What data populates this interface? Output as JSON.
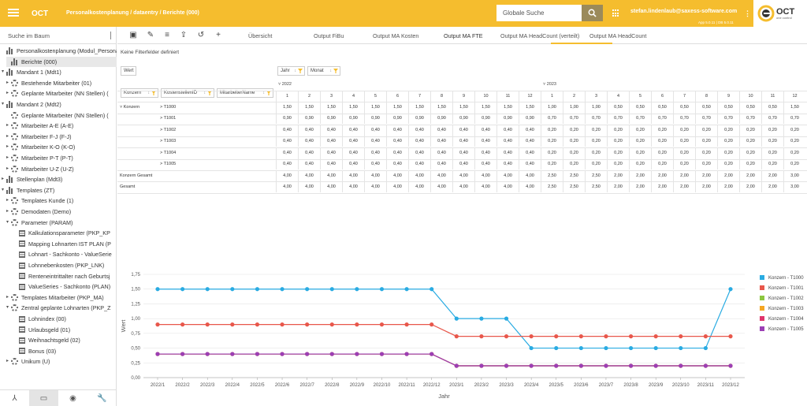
{
  "app": {
    "logo": "OCT",
    "breadcrumb": "Personalkostenplanung / dataentry / Berichte (000)",
    "search_placeholder": "Globale Suche",
    "user": "stefan.lindenlaub@saxess-software.com",
    "version": "App 5.0.11 | DB 5.0.11",
    "brand_text": "OCT",
    "brand_sub": "one control"
  },
  "sidebar": {
    "search_placeholder": "Suche im Baum",
    "items": [
      {
        "label": "Personalkostenplanung (Modul_Persona",
        "level": 0,
        "arrow": "",
        "icon": "tree",
        "selected": false
      },
      {
        "label": "Berichte (000)",
        "level": 1,
        "arrow": "",
        "icon": "bars",
        "selected": true
      },
      {
        "label": "Mandant 1 (Mdt1)",
        "level": 0,
        "arrow": "▾",
        "icon": "bars",
        "selected": false
      },
      {
        "label": "Bestehende Mitarbeiter (01)",
        "level": 1,
        "arrow": "▸",
        "icon": "gear",
        "selected": false
      },
      {
        "label": "Geplante Mitarbeiter (NN Stellen) (",
        "level": 1,
        "arrow": "▸",
        "icon": "gear",
        "selected": false
      },
      {
        "label": "Mandant 2 (Mdt2)",
        "level": 0,
        "arrow": "▾",
        "icon": "bars",
        "selected": false
      },
      {
        "label": "Geplante Mitarbeiter (NN Stellen) (",
        "level": 1,
        "arrow": "",
        "icon": "gear",
        "selected": false
      },
      {
        "label": "Mitarbeiter A-E (A-E)",
        "level": 1,
        "arrow": "▸",
        "icon": "gear",
        "selected": false
      },
      {
        "label": "Mitarbeiter F-J (F-J)",
        "level": 1,
        "arrow": "▸",
        "icon": "gear",
        "selected": false
      },
      {
        "label": "Mitarbeiter K-O (K-O)",
        "level": 1,
        "arrow": "▸",
        "icon": "gear",
        "selected": false
      },
      {
        "label": "Mitarbeiter P-T (P-T)",
        "level": 1,
        "arrow": "▸",
        "icon": "gear",
        "selected": false
      },
      {
        "label": "Mitarbeiter U-Z (U-Z)",
        "level": 1,
        "arrow": "▸",
        "icon": "gear",
        "selected": false
      },
      {
        "label": "Stellenplan (Mdt3)",
        "level": 0,
        "arrow": "▸",
        "icon": "bars",
        "selected": false
      },
      {
        "label": "Templates (ZT)",
        "level": 0,
        "arrow": "▾",
        "icon": "bars",
        "selected": false
      },
      {
        "label": "Templates Kunde (1)",
        "level": 1,
        "arrow": "▸",
        "icon": "gear",
        "selected": false
      },
      {
        "label": "Demodaten (Demo)",
        "level": 1,
        "arrow": "▸",
        "icon": "gear",
        "selected": false
      },
      {
        "label": "Parameter (PARAM)",
        "level": 1,
        "arrow": "▾",
        "icon": "gear",
        "selected": false
      },
      {
        "label": "Kalkulationsparameter (PKP_KP",
        "level": 2,
        "arrow": "",
        "icon": "table",
        "selected": false
      },
      {
        "label": "Mapping Lohnarten IST PLAN (P",
        "level": 2,
        "arrow": "",
        "icon": "table",
        "selected": false
      },
      {
        "label": "Lohnart - Sachkonto - ValueSerie",
        "level": 2,
        "arrow": "",
        "icon": "table",
        "selected": false
      },
      {
        "label": "Lohnnebenkosten (PKP_LNK)",
        "level": 2,
        "arrow": "",
        "icon": "table",
        "selected": false
      },
      {
        "label": "Renteneintrittalter nach Geburtsj",
        "level": 2,
        "arrow": "",
        "icon": "table",
        "selected": false
      },
      {
        "label": "ValueSeries - Sachkonto (PLAN)",
        "level": 2,
        "arrow": "",
        "icon": "table",
        "selected": false
      },
      {
        "label": "Templates Mitarbeiter (PKP_MA)",
        "level": 1,
        "arrow": "▸",
        "icon": "gear",
        "selected": false
      },
      {
        "label": "Zentral geplante Lohnarten (PKP_Z",
        "level": 1,
        "arrow": "▾",
        "icon": "gear",
        "selected": false
      },
      {
        "label": "Lohnindex (00)",
        "level": 2,
        "arrow": "",
        "icon": "table",
        "selected": false
      },
      {
        "label": "Urlaubsgeld (01)",
        "level": 2,
        "arrow": "",
        "icon": "table",
        "selected": false
      },
      {
        "label": "Weihnachtsgeld (02)",
        "level": 2,
        "arrow": "",
        "icon": "table",
        "selected": false
      },
      {
        "label": "Bonus (03)",
        "level": 2,
        "arrow": "",
        "icon": "table",
        "selected": false
      },
      {
        "label": "Unikum (U)",
        "level": 1,
        "arrow": "▸",
        "icon": "gear",
        "selected": false
      }
    ],
    "footer_icons": [
      "hierarchy-icon",
      "card-icon",
      "eye-icon",
      "wrench-icon"
    ]
  },
  "tabs": [
    "Übersicht",
    "Output FiBu",
    "Output MA Kosten",
    "Output MA FTE",
    "Output MA HeadCount (verteilt)",
    "Output MA HeadCount"
  ],
  "active_tab": 3,
  "filter_text": "Keine Filterfelder definiert",
  "pivot": {
    "data_field": "Wert",
    "column_fields": [
      "Jahr",
      "Monat"
    ],
    "row_fields": [
      "Konzern",
      "KostenstellenID",
      "MitarbeiterName"
    ],
    "years": [
      "2022",
      "2023"
    ],
    "months": [
      "1",
      "2",
      "3",
      "4",
      "5",
      "6",
      "7",
      "8",
      "9",
      "10",
      "11",
      "12",
      "1",
      "2",
      "3",
      "4",
      "5",
      "6",
      "7",
      "8",
      "9",
      "10",
      "11",
      "12"
    ],
    "group_label": "Konzern",
    "rows": [
      {
        "label": "T1000",
        "values": [
          "1,50",
          "1,50",
          "1,50",
          "1,50",
          "1,50",
          "1,50",
          "1,50",
          "1,50",
          "1,50",
          "1,50",
          "1,50",
          "1,50",
          "1,00",
          "1,00",
          "1,00",
          "0,50",
          "0,50",
          "0,50",
          "0,50",
          "0,50",
          "0,50",
          "0,50",
          "0,50",
          "1,50"
        ]
      },
      {
        "label": "T1001",
        "values": [
          "0,90",
          "0,90",
          "0,90",
          "0,90",
          "0,90",
          "0,90",
          "0,90",
          "0,90",
          "0,90",
          "0,90",
          "0,90",
          "0,90",
          "0,70",
          "0,70",
          "0,70",
          "0,70",
          "0,70",
          "0,70",
          "0,70",
          "0,70",
          "0,70",
          "0,70",
          "0,70",
          "0,70"
        ]
      },
      {
        "label": "T1002",
        "values": [
          "0,40",
          "0,40",
          "0,40",
          "0,40",
          "0,40",
          "0,40",
          "0,40",
          "0,40",
          "0,40",
          "0,40",
          "0,40",
          "0,40",
          "0,20",
          "0,20",
          "0,20",
          "0,20",
          "0,20",
          "0,20",
          "0,20",
          "0,20",
          "0,20",
          "0,20",
          "0,20",
          "0,20"
        ]
      },
      {
        "label": "T1003",
        "values": [
          "0,40",
          "0,40",
          "0,40",
          "0,40",
          "0,40",
          "0,40",
          "0,40",
          "0,40",
          "0,40",
          "0,40",
          "0,40",
          "0,40",
          "0,20",
          "0,20",
          "0,20",
          "0,20",
          "0,20",
          "0,20",
          "0,20",
          "0,20",
          "0,20",
          "0,20",
          "0,20",
          "0,20"
        ]
      },
      {
        "label": "T1004",
        "values": [
          "0,40",
          "0,40",
          "0,40",
          "0,40",
          "0,40",
          "0,40",
          "0,40",
          "0,40",
          "0,40",
          "0,40",
          "0,40",
          "0,40",
          "0,20",
          "0,20",
          "0,20",
          "0,20",
          "0,20",
          "0,20",
          "0,20",
          "0,20",
          "0,20",
          "0,20",
          "0,20",
          "0,20"
        ]
      },
      {
        "label": "T1005",
        "values": [
          "0,40",
          "0,40",
          "0,40",
          "0,40",
          "0,40",
          "0,40",
          "0,40",
          "0,40",
          "0,40",
          "0,40",
          "0,40",
          "0,40",
          "0,20",
          "0,20",
          "0,20",
          "0,20",
          "0,20",
          "0,20",
          "0,20",
          "0,20",
          "0,20",
          "0,20",
          "0,20",
          "0,20"
        ]
      }
    ],
    "totals": [
      {
        "label": "Konzern Gesamt",
        "values": [
          "4,00",
          "4,00",
          "4,00",
          "4,00",
          "4,00",
          "4,00",
          "4,00",
          "4,00",
          "4,00",
          "4,00",
          "4,00",
          "4,00",
          "2,50",
          "2,50",
          "2,50",
          "2,00",
          "2,00",
          "2,00",
          "2,00",
          "2,00",
          "2,00",
          "2,00",
          "2,00",
          "3,00"
        ]
      },
      {
        "label": "Gesamt",
        "values": [
          "4,00",
          "4,00",
          "4,00",
          "4,00",
          "4,00",
          "4,00",
          "4,00",
          "4,00",
          "4,00",
          "4,00",
          "4,00",
          "4,00",
          "2,50",
          "2,50",
          "2,50",
          "2,00",
          "2,00",
          "2,00",
          "2,00",
          "2,00",
          "2,00",
          "2,00",
          "2,00",
          "3,00"
        ]
      }
    ]
  },
  "chart_data": {
    "type": "line",
    "x": [
      "2022/1",
      "2022/2",
      "2022/3",
      "2022/4",
      "2022/5",
      "2022/6",
      "2022/7",
      "2022/8",
      "2022/9",
      "2022/10",
      "2022/11",
      "2022/12",
      "2023/1",
      "2023/2",
      "2023/3",
      "2023/4",
      "2023/5",
      "2023/6",
      "2023/7",
      "2023/8",
      "2023/9",
      "2023/10",
      "2023/11",
      "2023/12"
    ],
    "xlabel": "Jahr",
    "ylabel": "Wert",
    "ylim": [
      0,
      1.75
    ],
    "yticks": [
      "0,00",
      "0,25",
      "0,50",
      "0,75",
      "1,00",
      "1,25",
      "1,50",
      "1,75"
    ],
    "legend": "right",
    "series": [
      {
        "name": "Konzern - T1000",
        "color": "#29abe2",
        "values": [
          1.5,
          1.5,
          1.5,
          1.5,
          1.5,
          1.5,
          1.5,
          1.5,
          1.5,
          1.5,
          1.5,
          1.5,
          1.0,
          1.0,
          1.0,
          0.5,
          0.5,
          0.5,
          0.5,
          0.5,
          0.5,
          0.5,
          0.5,
          1.5
        ]
      },
      {
        "name": "Konzern - T1001",
        "color": "#e8574b",
        "values": [
          0.9,
          0.9,
          0.9,
          0.9,
          0.9,
          0.9,
          0.9,
          0.9,
          0.9,
          0.9,
          0.9,
          0.9,
          0.7,
          0.7,
          0.7,
          0.7,
          0.7,
          0.7,
          0.7,
          0.7,
          0.7,
          0.7,
          0.7,
          0.7
        ]
      },
      {
        "name": "Konzern - T1002",
        "color": "#8cc63f",
        "values": [
          0.4,
          0.4,
          0.4,
          0.4,
          0.4,
          0.4,
          0.4,
          0.4,
          0.4,
          0.4,
          0.4,
          0.4,
          0.2,
          0.2,
          0.2,
          0.2,
          0.2,
          0.2,
          0.2,
          0.2,
          0.2,
          0.2,
          0.2,
          0.2
        ]
      },
      {
        "name": "Konzern - T1003",
        "color": "#f5a623",
        "values": [
          0.4,
          0.4,
          0.4,
          0.4,
          0.4,
          0.4,
          0.4,
          0.4,
          0.4,
          0.4,
          0.4,
          0.4,
          0.2,
          0.2,
          0.2,
          0.2,
          0.2,
          0.2,
          0.2,
          0.2,
          0.2,
          0.2,
          0.2,
          0.2
        ]
      },
      {
        "name": "Konzern - T1004",
        "color": "#e0356b",
        "values": [
          0.4,
          0.4,
          0.4,
          0.4,
          0.4,
          0.4,
          0.4,
          0.4,
          0.4,
          0.4,
          0.4,
          0.4,
          0.2,
          0.2,
          0.2,
          0.2,
          0.2,
          0.2,
          0.2,
          0.2,
          0.2,
          0.2,
          0.2,
          0.2
        ]
      },
      {
        "name": "Konzern - T1005",
        "color": "#9b3fb5",
        "values": [
          0.4,
          0.4,
          0.4,
          0.4,
          0.4,
          0.4,
          0.4,
          0.4,
          0.4,
          0.4,
          0.4,
          0.4,
          0.2,
          0.2,
          0.2,
          0.2,
          0.2,
          0.2,
          0.2,
          0.2,
          0.2,
          0.2,
          0.2,
          0.2
        ]
      }
    ]
  }
}
